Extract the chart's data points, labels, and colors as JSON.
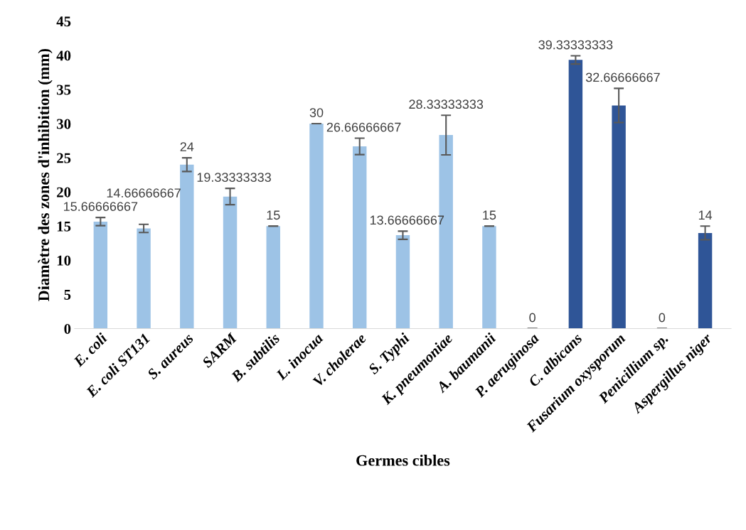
{
  "chart_data": {
    "type": "bar",
    "xlabel": "Germes cibles",
    "ylabel": "Diamètre des zones d'inhibition (mm)",
    "categories": [
      "E. coli",
      "E. coli ST131",
      "S. aureus",
      "SARM",
      "B. subtilis",
      "L. inocua",
      "V. cholerae",
      "S. Typhi",
      "K. pneumoniae",
      "A. baumanii",
      "P. aeruginosa",
      "C. albicans",
      "Fusarium oxysporum",
      "Penicillium sp.",
      "Aspergillus niger"
    ],
    "values": [
      15.66666667,
      14.66666667,
      24,
      19.33333333,
      15,
      30,
      26.66666667,
      13.66666667,
      28.33333333,
      15,
      0,
      39.33333333,
      32.66666667,
      0,
      14
    ],
    "errors": [
      0.6,
      0.6,
      1,
      1.2,
      0,
      0,
      1.2,
      0.6,
      2.9,
      0,
      0,
      0.6,
      2.5,
      0,
      1
    ],
    "colors": [
      "#9dc3e6",
      "#9dc3e6",
      "#9dc3e6",
      "#9dc3e6",
      "#9dc3e6",
      "#9dc3e6",
      "#9dc3e6",
      "#9dc3e6",
      "#9dc3e6",
      "#9dc3e6",
      "#9dc3e6",
      "#2f5597",
      "#2f5597",
      "#2f5597",
      "#2f5597"
    ],
    "ylim": [
      0,
      45
    ],
    "yticks": [
      0,
      5,
      10,
      15,
      20,
      25,
      30,
      35,
      40,
      45
    ],
    "data_labels": true,
    "grid": false
  }
}
